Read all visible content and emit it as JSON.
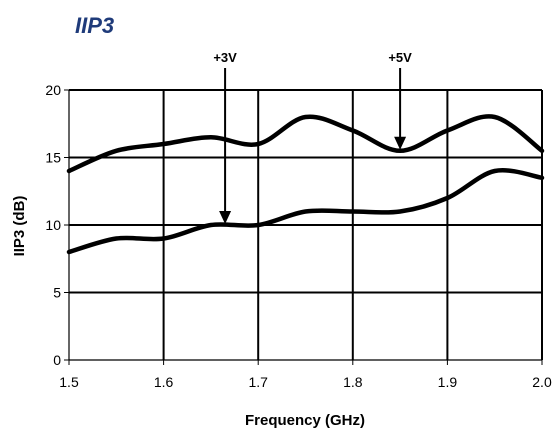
{
  "chart_data": {
    "type": "line",
    "title": "IIP3",
    "xlabel": "Frequency (GHz)",
    "ylabel": "IIP3 (dB)",
    "xlim": [
      1.5,
      2.0
    ],
    "ylim": [
      0,
      20
    ],
    "xticks": [
      "1.5",
      "1.6",
      "1.7",
      "1.8",
      "1.9",
      "2.0"
    ],
    "yticks": [
      "0",
      "5",
      "10",
      "15",
      "20"
    ],
    "grid": "major x and y",
    "legend": "none",
    "series": [
      {
        "x": [
          1.5,
          1.55,
          1.6,
          1.65,
          1.7,
          1.75,
          1.8,
          1.85,
          1.9,
          1.95,
          2.0
        ],
        "y": [
          14.0,
          15.5,
          16.0,
          16.5,
          16.0,
          18.0,
          17.0,
          15.5,
          17.0,
          18.0,
          15.5
        ]
      },
      {
        "x": [
          1.5,
          1.55,
          1.6,
          1.65,
          1.7,
          1.75,
          1.8,
          1.85,
          1.9,
          1.95,
          2.0
        ],
        "y": [
          8.0,
          9.0,
          9.0,
          10.0,
          10.0,
          11.0,
          11.0,
          11.0,
          12.0,
          14.0,
          13.5
        ]
      }
    ],
    "annotations": [
      {
        "text": "+3V",
        "x": 1.665,
        "y": 10.0
      },
      {
        "text": "+5V",
        "x": 1.85,
        "y": 15.5
      }
    ],
    "line_color": "#000000",
    "title_color": "#1f3b7a"
  }
}
